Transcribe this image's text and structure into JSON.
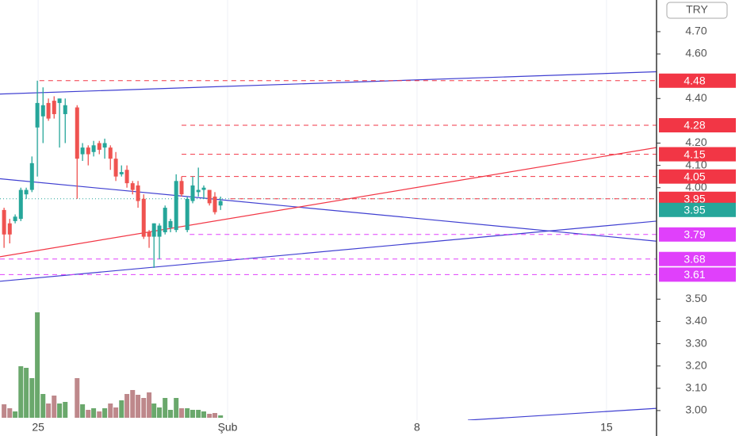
{
  "chart_data": {
    "type": "candlestick",
    "currency": "TRY",
    "xlim": [
      23.59,
      47.85
    ],
    "ylim": [
      2.957,
      4.842
    ],
    "xticks": [
      {
        "value": 25,
        "label": "25"
      },
      {
        "value": 32,
        "label": "Şub"
      },
      {
        "value": 39,
        "label": "8"
      },
      {
        "value": 46,
        "label": "15"
      }
    ],
    "yticks": [
      {
        "value": 3.0,
        "label": "3.00"
      },
      {
        "value": 3.1,
        "label": "3.10"
      },
      {
        "value": 3.2,
        "label": "3.20"
      },
      {
        "value": 3.3,
        "label": "3.30"
      },
      {
        "value": 3.4,
        "label": "3.40"
      },
      {
        "value": 3.5,
        "label": "3.50"
      },
      {
        "value": 4.0,
        "label": "4.00"
      },
      {
        "value": 4.1,
        "label": "4.10"
      },
      {
        "value": 4.2,
        "label": "4.20"
      },
      {
        "value": 4.4,
        "label": "4.40"
      },
      {
        "value": 4.6,
        "label": "4.60"
      },
      {
        "value": 4.7,
        "label": "4.70"
      }
    ],
    "up_color": "#26a69a",
    "down_color": "#ef5350",
    "volume_up_color": "#5a9e5c",
    "volume_down_color": "#b77b7e",
    "candles": {
      "x": [
        23.74,
        23.95,
        24.15,
        24.36,
        24.56,
        24.77,
        24.97,
        25.18,
        25.38,
        25.59,
        25.79,
        26.0,
        26.44,
        26.64,
        26.85,
        27.05,
        27.26,
        27.46,
        27.67,
        27.87,
        28.08,
        28.28,
        28.49,
        28.69,
        28.9,
        29.1,
        29.28,
        29.48,
        29.69,
        29.89,
        30.1,
        30.3,
        30.51,
        30.71,
        30.92,
        31.12,
        31.33,
        31.53,
        31.74
      ],
      "open": [
        3.9,
        3.84,
        3.85,
        3.86,
        3.97,
        3.99,
        4.27,
        4.32,
        4.38,
        4.39,
        4.38,
        4.33,
        4.36,
        4.15,
        4.18,
        4.16,
        4.2,
        4.18,
        4.18,
        4.13,
        4.06,
        4.08,
        4.02,
        4.01,
        3.95,
        3.8,
        3.78,
        3.78,
        3.8,
        3.82,
        3.81,
        4.03,
        3.81,
        3.94,
        3.98,
        3.99,
        3.99,
        3.96,
        3.92
      ],
      "high": [
        3.91,
        3.86,
        3.88,
        4.0,
        4.0,
        4.14,
        4.48,
        4.45,
        4.4,
        4.41,
        4.4,
        4.4,
        4.37,
        4.2,
        4.19,
        4.21,
        4.21,
        4.22,
        4.19,
        4.16,
        4.1,
        4.1,
        4.03,
        4.03,
        3.97,
        3.81,
        3.84,
        3.84,
        3.92,
        3.86,
        4.06,
        4.05,
        3.96,
        4.05,
        4.09,
        4.01,
        3.99,
        3.98,
        3.96
      ],
      "low": [
        3.73,
        3.75,
        3.84,
        3.85,
        3.95,
        3.98,
        4.05,
        4.2,
        4.3,
        4.31,
        4.18,
        4.2,
        3.95,
        4.12,
        4.1,
        4.14,
        4.15,
        4.13,
        4.08,
        4.03,
        4.05,
        4.0,
        3.97,
        3.91,
        3.77,
        3.73,
        3.64,
        3.68,
        3.79,
        3.8,
        3.8,
        3.96,
        3.8,
        3.93,
        3.96,
        3.95,
        3.92,
        3.88,
        3.9
      ],
      "close": [
        3.79,
        3.79,
        3.87,
        3.99,
        3.99,
        4.11,
        4.38,
        4.37,
        4.31,
        4.33,
        4.4,
        4.37,
        4.13,
        4.18,
        4.15,
        4.19,
        4.17,
        4.2,
        4.13,
        4.05,
        4.07,
        4.02,
        3.99,
        3.94,
        3.78,
        3.78,
        3.84,
        3.83,
        3.91,
        3.85,
        4.03,
        3.97,
        3.95,
        4.01,
        3.99,
        4.0,
        3.93,
        3.89,
        3.94
      ],
      "volume": [
        17,
        12,
        8,
        65,
        63,
        50,
        133,
        30,
        18,
        28,
        18,
        20,
        50,
        17,
        10,
        12,
        8,
        12,
        18,
        13,
        22,
        30,
        35,
        29,
        25,
        32,
        18,
        13,
        25,
        10,
        25,
        12,
        12,
        10,
        10,
        8,
        5,
        6,
        3
      ]
    },
    "levels": [
      {
        "value": 4.48,
        "label": "4.48",
        "color": "#f23645",
        "x_start": 25.05,
        "style": "dashed"
      },
      {
        "value": 4.28,
        "label": "4.28",
        "color": "#f23645",
        "x_start": 30.3,
        "style": "dashed"
      },
      {
        "value": 4.15,
        "label": "4.15",
        "color": "#f23645",
        "x_start": 30.3,
        "style": "dashed"
      },
      {
        "value": 4.05,
        "label": "4.05",
        "color": "#f23645",
        "x_start": 30.3,
        "style": "dashed"
      },
      {
        "value": 3.95,
        "label": "3.95",
        "color": "#f23645",
        "x_start": 32.1,
        "style": "dashed"
      },
      {
        "value": 3.79,
        "label": "3.79",
        "color": "#e040fb",
        "x_start": 30.6,
        "style": "dashed"
      },
      {
        "value": 3.68,
        "label": "3.68",
        "color": "#e040fb",
        "x_start": 23.59,
        "style": "dashed"
      },
      {
        "value": 3.61,
        "label": "3.61",
        "color": "#e040fb",
        "x_start": 23.59,
        "style": "dashed"
      }
    ],
    "last_price": {
      "value": 3.95,
      "label": "3.95",
      "color": "#26a69a"
    },
    "trend_lines": [
      {
        "x": [
          23.59,
          47.85
        ],
        "y": [
          4.42,
          4.52
        ],
        "color": "#3f3fd1"
      },
      {
        "x": [
          23.59,
          47.85
        ],
        "y": [
          4.04,
          3.76
        ],
        "color": "#3f3fd1"
      },
      {
        "x": [
          23.59,
          47.85
        ],
        "y": [
          3.58,
          3.85
        ],
        "color": "#3f3fd1"
      },
      {
        "x": [
          23.59,
          47.85
        ],
        "y": [
          3.69,
          4.18
        ],
        "color": "#f23645"
      },
      {
        "x": [
          40.88,
          47.85
        ],
        "y": [
          2.957,
          3.01
        ],
        "color": "#3f3fd1"
      }
    ]
  }
}
